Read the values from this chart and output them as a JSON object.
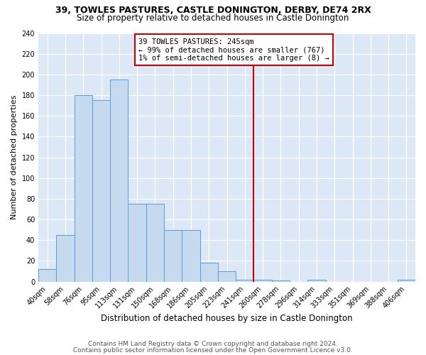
{
  "title1": "39, TOWLES PASTURES, CASTLE DONINGTON, DERBY, DE74 2RX",
  "title2": "Size of property relative to detached houses in Castle Donington",
  "xlabel": "Distribution of detached houses by size in Castle Donington",
  "ylabel": "Number of detached properties",
  "footnote1": "Contains HM Land Registry data © Crown copyright and database right 2024.",
  "footnote2": "Contains public sector information licensed under the Open Government Licence v3.0.",
  "categories": [
    "40sqm",
    "58sqm",
    "76sqm",
    "95sqm",
    "113sqm",
    "131sqm",
    "150sqm",
    "168sqm",
    "186sqm",
    "205sqm",
    "223sqm",
    "241sqm",
    "260sqm",
    "278sqm",
    "296sqm",
    "314sqm",
    "333sqm",
    "351sqm",
    "369sqm",
    "388sqm",
    "406sqm"
  ],
  "values": [
    12,
    45,
    180,
    175,
    195,
    75,
    75,
    50,
    50,
    18,
    10,
    2,
    2,
    1,
    0,
    2,
    0,
    0,
    0,
    0,
    2
  ],
  "bar_color": "#c5d9ef",
  "bar_edge_color": "#5b9bd5",
  "vline_index": 11,
  "vline_color": "#cc0000",
  "annotation_text": "39 TOWLES PASTURES: 245sqm\n← 99% of detached houses are smaller (767)\n1% of semi-detached houses are larger (8) →",
  "annotation_box_color": "white",
  "annotation_box_edge": "#cc0000",
  "ylim": [
    0,
    240
  ],
  "yticks": [
    0,
    20,
    40,
    60,
    80,
    100,
    120,
    140,
    160,
    180,
    200,
    220,
    240
  ],
  "background_color": "#dce8f5",
  "grid_color": "white",
  "title1_fontsize": 9,
  "title2_fontsize": 8.5,
  "xlabel_fontsize": 8.5,
  "ylabel_fontsize": 8,
  "tick_fontsize": 7,
  "footnote_fontsize": 6.5,
  "ann_fontsize": 7.5
}
